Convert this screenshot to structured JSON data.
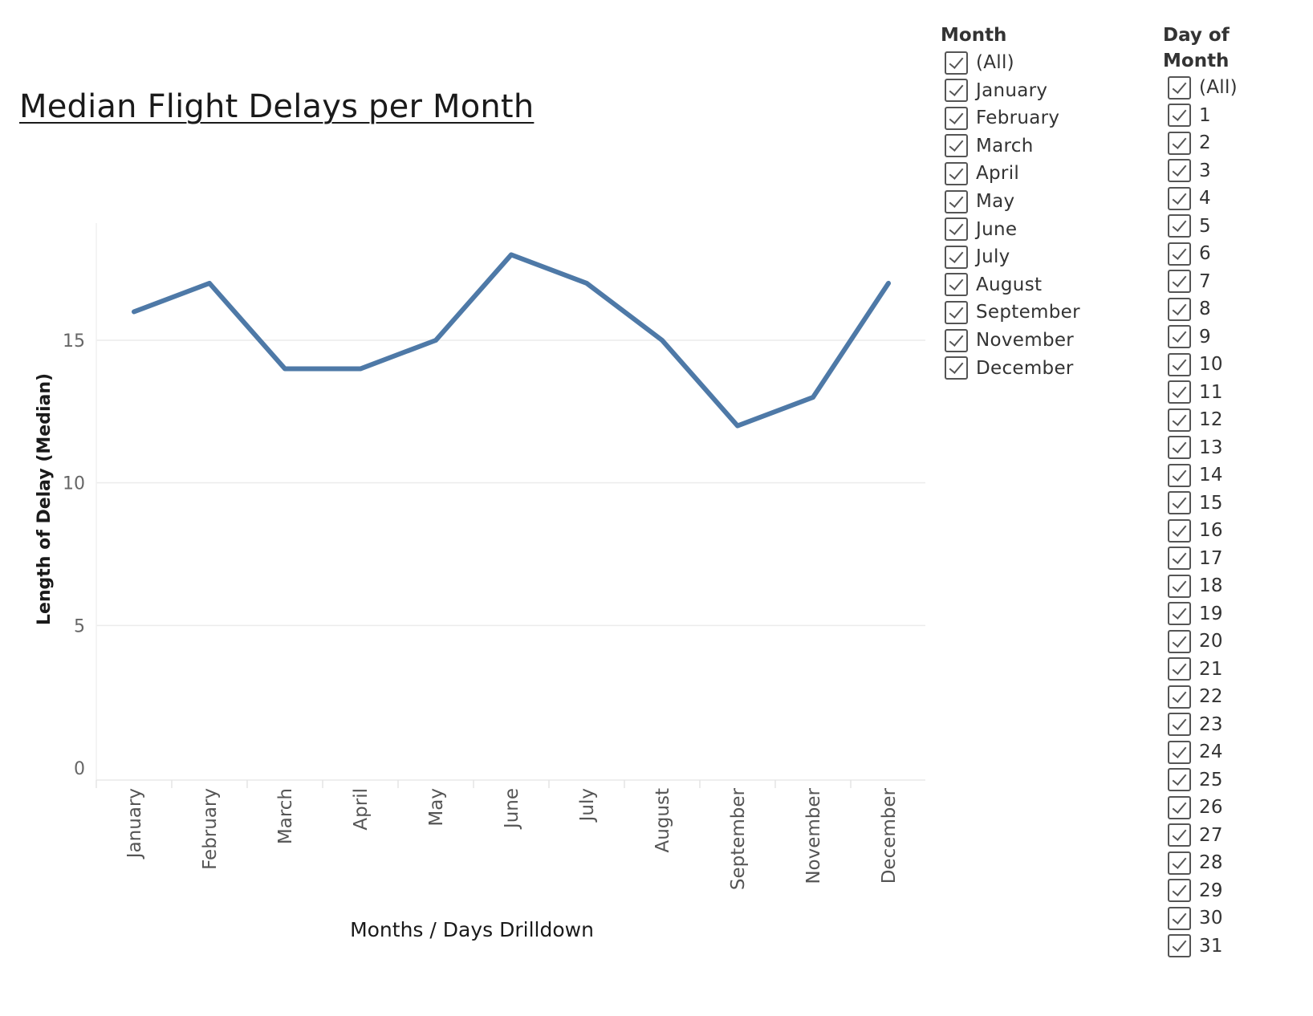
{
  "chart_data": {
    "type": "line",
    "title": "Median Flight Delays per Month",
    "xlabel": "Months / Days Drilldown",
    "ylabel": "Length of Delay (Median)",
    "categories": [
      "January",
      "February",
      "March",
      "April",
      "May",
      "June",
      "July",
      "August",
      "September",
      "November",
      "December"
    ],
    "values": [
      16,
      17,
      14,
      14,
      15,
      18,
      17,
      15,
      12,
      13,
      17
    ],
    "yticks": [
      0,
      5,
      10,
      15
    ],
    "ylim": [
      0,
      19
    ],
    "grid": true,
    "line_color": "#4e79a7",
    "legend": "none"
  },
  "filters": {
    "month": {
      "title": "Month",
      "options": [
        "(All)",
        "January",
        "February",
        "March",
        "April",
        "May",
        "June",
        "July",
        "August",
        "September",
        "November",
        "December"
      ]
    },
    "day": {
      "title": "Day of\nMonth",
      "options": [
        "(All)",
        "1",
        "2",
        "3",
        "4",
        "5",
        "6",
        "7",
        "8",
        "9",
        "10",
        "11",
        "12",
        "13",
        "14",
        "15",
        "16",
        "17",
        "18",
        "19",
        "20",
        "21",
        "22",
        "23",
        "24",
        "25",
        "26",
        "27",
        "28",
        "29",
        "30",
        "31"
      ]
    }
  }
}
